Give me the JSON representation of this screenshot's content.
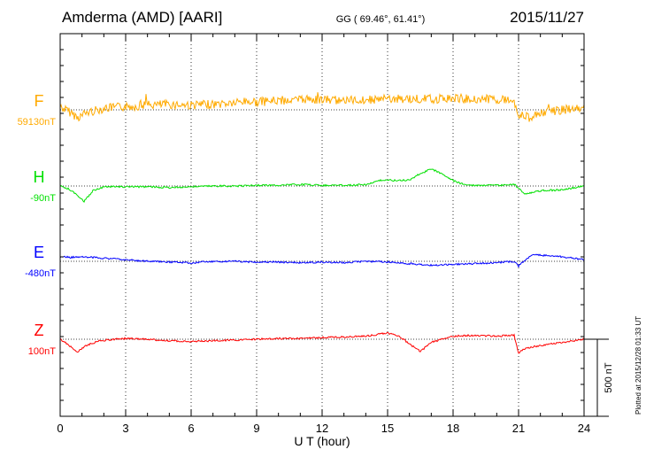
{
  "header": {
    "station": "Amderma (AMD)  [AARI]",
    "coords": "GG ( 69.46°,  61.41°)",
    "date": "2015/11/27"
  },
  "footer": {
    "plotted": "Plotted at 2015/12/28 01:33 UT",
    "scale_label": "500 nT"
  },
  "chart_data": {
    "type": "line",
    "xlabel": "U T (hour)",
    "xlim": [
      0,
      24
    ],
    "xticks": [
      0,
      3,
      6,
      9,
      12,
      15,
      18,
      21,
      24
    ],
    "grid": true,
    "scale_bar_nT": 500,
    "series": [
      {
        "name": "F",
        "baseline_label": "59130nT",
        "baseline_nT": 59130,
        "color": "#ffaa00",
        "x": [
          0,
          0.5,
          0.8,
          1.2,
          2,
          3,
          4,
          5,
          6,
          7,
          8,
          8.5,
          9,
          10,
          11,
          11.5,
          12,
          13,
          14,
          15,
          16,
          17,
          18,
          19,
          20,
          20.8,
          21,
          21.5,
          22,
          23,
          24
        ],
        "y": [
          59150,
          59110,
          59080,
          59110,
          59140,
          59150,
          59160,
          59165,
          59160,
          59165,
          59175,
          59185,
          59180,
          59190,
          59195,
          59200,
          59195,
          59190,
          59195,
          59200,
          59200,
          59200,
          59205,
          59200,
          59200,
          59190,
          59100,
          59080,
          59110,
          59130,
          59140
        ]
      },
      {
        "name": "H",
        "baseline_label": "-90nT",
        "baseline_nT": -90,
        "color": "#00e000",
        "x": [
          0,
          0.4,
          0.8,
          1.1,
          1.5,
          2,
          3,
          4,
          5,
          6,
          7,
          8,
          9,
          10,
          11,
          12,
          13,
          14,
          14.8,
          15.5,
          16,
          16.5,
          17,
          17.5,
          18,
          18.5,
          19,
          20,
          20.8,
          21,
          21.3,
          22,
          23,
          24
        ],
        "y": [
          -90,
          -110,
          -150,
          -190,
          -120,
          -95,
          -95,
          -95,
          -100,
          -95,
          -90,
          -90,
          -85,
          -85,
          -80,
          -85,
          -85,
          -80,
          -50,
          -55,
          -50,
          -10,
          20,
          -10,
          -55,
          -80,
          -85,
          -85,
          -80,
          -105,
          -140,
          -120,
          -115,
          -90
        ]
      },
      {
        "name": "E",
        "baseline_label": "-480nT",
        "baseline_nT": -480,
        "color": "#0000ff",
        "x": [
          0,
          0.5,
          1,
          2,
          3,
          4,
          5,
          6,
          7,
          8,
          9,
          10,
          11,
          12,
          13,
          14,
          15,
          16,
          17,
          18,
          19,
          20,
          20.8,
          21,
          21.3,
          21.6,
          22,
          23,
          24
        ],
        "y": [
          -450,
          -455,
          -450,
          -460,
          -470,
          -480,
          -485,
          -490,
          -480,
          -480,
          -485,
          -485,
          -490,
          -485,
          -490,
          -480,
          -485,
          -495,
          -505,
          -500,
          -495,
          -490,
          -480,
          -510,
          -470,
          -440,
          -440,
          -450,
          -470
        ]
      },
      {
        "name": "Z",
        "baseline_label": "100nT",
        "baseline_nT": 100,
        "color": "#ff0000",
        "x": [
          0,
          0.4,
          0.8,
          1.2,
          1.8,
          2.5,
          3,
          4,
          5,
          6,
          7,
          8,
          9,
          10,
          11,
          12,
          13,
          14,
          15,
          15.5,
          16,
          16.5,
          17,
          18,
          19,
          20,
          20.8,
          21,
          21.3,
          22,
          23,
          24
        ],
        "y": [
          100,
          60,
          20,
          60,
          90,
          100,
          105,
          100,
          90,
          85,
          90,
          95,
          100,
          105,
          105,
          110,
          115,
          120,
          140,
          120,
          70,
          20,
          80,
          120,
          125,
          120,
          125,
          10,
          40,
          60,
          80,
          100
        ]
      }
    ]
  }
}
